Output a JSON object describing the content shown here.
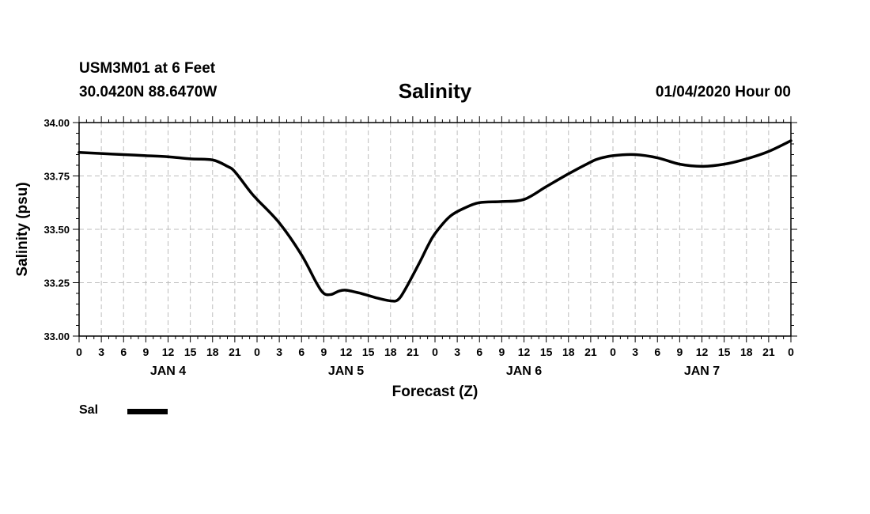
{
  "header": {
    "station": "USM3M01 at 6 Feet",
    "coords": "30.0420N 88.6470W",
    "datestamp": "01/04/2020 Hour 00"
  },
  "legend": {
    "label": "Sal"
  },
  "chart_data": {
    "type": "line",
    "title": "Salinity",
    "xlabel": "Forecast (Z)",
    "ylabel": "Salinity (psu)",
    "ylim": [
      33.0,
      34.0
    ],
    "yticks": [
      33.0,
      33.25,
      33.5,
      33.75,
      34.0
    ],
    "ytick_labels": [
      "33.00",
      "33.25",
      "33.50",
      "33.75",
      "34.00"
    ],
    "xlim": [
      0,
      96
    ],
    "xtick_step_hours": 3,
    "xtick_labels": [
      "0",
      "3",
      "6",
      "9",
      "12",
      "15",
      "18",
      "21",
      "0",
      "3",
      "6",
      "9",
      "12",
      "15",
      "18",
      "21",
      "0",
      "3",
      "6",
      "9",
      "12",
      "15",
      "18",
      "21",
      "0",
      "3",
      "6",
      "9",
      "12",
      "15",
      "18",
      "21",
      "0"
    ],
    "day_labels": [
      {
        "label": "JAN 4",
        "hour": 12
      },
      {
        "label": "JAN 5",
        "hour": 36
      },
      {
        "label": "JAN 6",
        "hour": 60
      },
      {
        "label": "JAN 7",
        "hour": 84
      }
    ],
    "grid": true,
    "legend_position": "bottom-left",
    "series": [
      {
        "name": "Sal",
        "color": "#000000",
        "x": [
          0,
          3,
          6,
          9,
          12,
          15,
          18,
          20,
          21,
          23,
          24,
          27,
          30,
          32,
          33,
          34,
          35,
          36,
          38,
          40,
          42,
          43,
          44,
          46,
          47,
          48,
          50,
          52,
          54,
          57,
          60,
          63,
          66,
          69,
          70,
          72,
          75,
          78,
          81,
          84,
          87,
          90,
          93,
          96
        ],
        "y": [
          33.86,
          33.855,
          33.85,
          33.845,
          33.84,
          33.83,
          33.825,
          33.795,
          33.77,
          33.68,
          33.64,
          33.53,
          33.38,
          33.25,
          33.2,
          33.195,
          33.21,
          33.215,
          33.2,
          33.18,
          33.165,
          33.17,
          33.22,
          33.35,
          33.42,
          33.48,
          33.56,
          33.6,
          33.625,
          33.63,
          33.64,
          33.7,
          33.76,
          33.815,
          33.83,
          33.845,
          33.85,
          33.835,
          33.805,
          33.795,
          33.805,
          33.83,
          33.865,
          33.915
        ]
      }
    ]
  }
}
